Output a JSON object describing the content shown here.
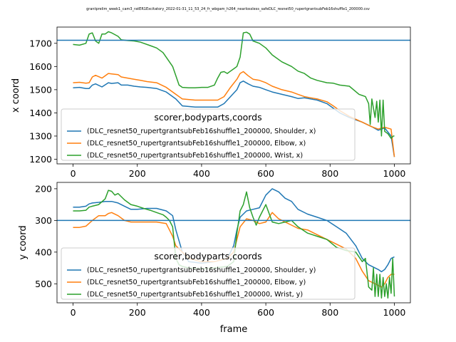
{
  "figure_title": "grantprelim_week1_cam3_ratER1Excitatory_2022-01-31_11_53_24_fr_wbgam_h264_nearlossless_safeDLC_resnet50_rupertgrantsubFeb16shuffle1_200000.csv",
  "colors": {
    "shoulder": "#1f77b4",
    "elbow": "#ff7f0e",
    "wrist": "#2ca02c",
    "hline": "#1f77b4"
  },
  "chart_data": [
    {
      "type": "line",
      "title": "",
      "xlabel": "",
      "ylabel": "x coord",
      "xlim": [
        -50,
        1050
      ],
      "ylim": [
        1180,
        1770
      ],
      "xticks": [
        0,
        200,
        400,
        600,
        800,
        1000
      ],
      "yticks": [
        1200,
        1300,
        1400,
        1500,
        1600,
        1700
      ],
      "invert_y": false,
      "hline": 1713,
      "legend": {
        "title": "scorer,bodyparts,coords",
        "placement": "lower-left",
        "entries": [
          "(DLC_resnet50_rupertgrantsubFeb16shuffle1_200000, Shoulder, x)",
          "(DLC_resnet50_rupertgrantsubFeb16shuffle1_200000, Elbow, x)",
          "(DLC_resnet50_rupertgrantsubFeb16shuffle1_200000, Wrist, x)"
        ]
      },
      "series": [
        {
          "name": "(DLC_resnet50_rupertgrantsubFeb16shuffle1_200000, Shoulder, x)",
          "color": "#1f77b4",
          "x": [
            0,
            20,
            40,
            50,
            60,
            70,
            90,
            110,
            120,
            140,
            150,
            170,
            190,
            210,
            230,
            260,
            290,
            300,
            310,
            320,
            340,
            380,
            420,
            450,
            470,
            490,
            510,
            520,
            530,
            545,
            560,
            580,
            600,
            620,
            650,
            680,
            700,
            720,
            740,
            760,
            790,
            810,
            830,
            860,
            900,
            930,
            950,
            960,
            970,
            990,
            1000
          ],
          "y": [
            1508,
            1510,
            1505,
            1505,
            1520,
            1525,
            1512,
            1530,
            1527,
            1530,
            1520,
            1520,
            1515,
            1512,
            1510,
            1505,
            1490,
            1480,
            1470,
            1460,
            1430,
            1425,
            1425,
            1425,
            1440,
            1470,
            1500,
            1530,
            1537,
            1525,
            1515,
            1510,
            1500,
            1490,
            1480,
            1470,
            1462,
            1465,
            1460,
            1455,
            1440,
            1420,
            1400,
            1380,
            1360,
            1340,
            1325,
            1330,
            1335,
            1300,
            1210
          ]
        },
        {
          "name": "(DLC_resnet50_rupertgrantsubFeb16shuffle1_200000, Elbow, x)",
          "color": "#ff7f0e",
          "x": [
            0,
            20,
            40,
            50,
            60,
            70,
            90,
            110,
            120,
            140,
            150,
            170,
            190,
            210,
            230,
            260,
            290,
            300,
            310,
            320,
            340,
            380,
            420,
            450,
            470,
            490,
            510,
            520,
            530,
            545,
            560,
            580,
            600,
            620,
            650,
            680,
            700,
            720,
            740,
            760,
            790,
            810,
            830,
            860,
            900,
            930,
            950,
            960,
            970,
            990,
            1000
          ],
          "y": [
            1530,
            1532,
            1528,
            1530,
            1555,
            1562,
            1550,
            1570,
            1568,
            1565,
            1555,
            1550,
            1545,
            1540,
            1535,
            1530,
            1510,
            1500,
            1490,
            1480,
            1460,
            1455,
            1455,
            1455,
            1470,
            1510,
            1545,
            1570,
            1578,
            1560,
            1545,
            1540,
            1530,
            1515,
            1500,
            1490,
            1480,
            1470,
            1465,
            1460,
            1448,
            1430,
            1410,
            1385,
            1360,
            1340,
            1330,
            1335,
            1338,
            1330,
            1210
          ]
        },
        {
          "name": "(DLC_resnet50_rupertgrantsubFeb16shuffle1_200000, Wrist, x)",
          "color": "#2ca02c",
          "x": [
            0,
            20,
            40,
            50,
            60,
            70,
            80,
            90,
            100,
            110,
            120,
            140,
            150,
            170,
            190,
            210,
            240,
            260,
            280,
            290,
            300,
            310,
            320,
            330,
            340,
            360,
            380,
            400,
            420,
            440,
            450,
            460,
            470,
            480,
            490,
            500,
            510,
            520,
            530,
            540,
            550,
            560,
            580,
            600,
            620,
            650,
            680,
            700,
            720,
            740,
            760,
            790,
            810,
            830,
            860,
            890,
            910,
            920,
            925,
            930,
            935,
            940,
            945,
            950,
            955,
            960,
            965,
            970,
            980,
            990,
            997,
            1000
          ],
          "y": [
            1695,
            1692,
            1700,
            1740,
            1745,
            1710,
            1700,
            1740,
            1740,
            1750,
            1745,
            1730,
            1715,
            1712,
            1710,
            1705,
            1690,
            1680,
            1660,
            1640,
            1620,
            1600,
            1560,
            1520,
            1510,
            1508,
            1508,
            1510,
            1510,
            1520,
            1550,
            1575,
            1578,
            1570,
            1580,
            1590,
            1600,
            1640,
            1745,
            1748,
            1740,
            1710,
            1700,
            1680,
            1650,
            1620,
            1600,
            1580,
            1570,
            1550,
            1540,
            1530,
            1528,
            1520,
            1515,
            1480,
            1470,
            1440,
            1350,
            1460,
            1420,
            1380,
            1450,
            1360,
            1455,
            1300,
            1455,
            1320,
            1310,
            1290,
            1300,
            1300
          ]
        }
      ]
    },
    {
      "type": "line",
      "title": "",
      "xlabel": "frame",
      "ylabel": "y coord",
      "xlim": [
        -50,
        1050
      ],
      "ylim": [
        180,
        560
      ],
      "xticks": [
        0,
        200,
        400,
        600,
        800,
        1000
      ],
      "yticks": [
        200,
        300,
        400,
        500
      ],
      "invert_y": true,
      "hline": 300,
      "legend": {
        "title": "scorer,bodyparts,coords",
        "placement": "lower-left",
        "entries": [
          "(DLC_resnet50_rupertgrantsubFeb16shuffle1_200000, Shoulder, y)",
          "(DLC_resnet50_rupertgrantsubFeb16shuffle1_200000, Elbow, y)",
          "(DLC_resnet50_rupertgrantsubFeb16shuffle1_200000, Wrist, y)"
        ]
      },
      "series": [
        {
          "name": "(DLC_resnet50_rupertgrantsubFeb16shuffle1_200000, Shoulder, y)",
          "color": "#1f77b4",
          "x": [
            0,
            20,
            40,
            50,
            60,
            80,
            100,
            120,
            140,
            160,
            180,
            200,
            230,
            260,
            290,
            310,
            320,
            340,
            360,
            400,
            440,
            480,
            500,
            510,
            520,
            540,
            560,
            580,
            600,
            620,
            640,
            660,
            680,
            700,
            730,
            760,
            790,
            820,
            850,
            880,
            900,
            920,
            950,
            960,
            970,
            980,
            990,
            1000
          ],
          "y": [
            258,
            258,
            255,
            248,
            245,
            243,
            240,
            240,
            245,
            255,
            265,
            265,
            262,
            262,
            270,
            285,
            330,
            400,
            430,
            435,
            430,
            420,
            380,
            330,
            290,
            270,
            265,
            260,
            220,
            200,
            210,
            230,
            240,
            265,
            280,
            290,
            300,
            320,
            340,
            380,
            420,
            440,
            455,
            462,
            455,
            440,
            420,
            415
          ]
        },
        {
          "name": "(DLC_resnet50_rupertgrantsubFeb16shuffle1_200000, Elbow, y)",
          "color": "#ff7f0e",
          "x": [
            0,
            20,
            40,
            60,
            80,
            100,
            110,
            120,
            140,
            160,
            180,
            200,
            230,
            260,
            290,
            300,
            310,
            320,
            340,
            360,
            400,
            440,
            480,
            500,
            510,
            520,
            540,
            560,
            580,
            600,
            620,
            640,
            660,
            680,
            700,
            730,
            760,
            790,
            820,
            850,
            880,
            900,
            920,
            940,
            950,
            960,
            970,
            980,
            990,
            1000
          ],
          "y": [
            322,
            322,
            318,
            300,
            285,
            285,
            278,
            275,
            285,
            300,
            305,
            305,
            305,
            305,
            310,
            330,
            350,
            380,
            400,
            420,
            430,
            430,
            420,
            400,
            360,
            320,
            295,
            300,
            310,
            305,
            275,
            295,
            305,
            315,
            325,
            330,
            345,
            360,
            375,
            390,
            420,
            460,
            490,
            500,
            505,
            510,
            500,
            480,
            470,
            470
          ]
        },
        {
          "name": "(DLC_resnet50_rupertgrantsubFeb16shuffle1_200000, Wrist, y)",
          "color": "#2ca02c",
          "x": [
            0,
            20,
            40,
            50,
            60,
            80,
            100,
            110,
            120,
            130,
            140,
            160,
            180,
            200,
            220,
            240,
            260,
            280,
            290,
            300,
            310,
            320,
            330,
            340,
            360,
            400,
            440,
            480,
            500,
            510,
            520,
            530,
            540,
            550,
            560,
            570,
            580,
            590,
            600,
            620,
            640,
            660,
            680,
            700,
            730,
            760,
            790,
            820,
            850,
            880,
            900,
            910,
            920,
            930,
            935,
            940,
            945,
            950,
            955,
            960,
            965,
            970,
            975,
            980,
            985,
            990,
            995,
            1000
          ],
          "y": [
            270,
            270,
            268,
            258,
            255,
            250,
            232,
            205,
            208,
            220,
            215,
            235,
            250,
            255,
            262,
            268,
            275,
            282,
            290,
            300,
            320,
            420,
            440,
            445,
            450,
            452,
            450,
            445,
            430,
            340,
            270,
            250,
            210,
            260,
            290,
            315,
            290,
            270,
            250,
            305,
            310,
            305,
            300,
            320,
            340,
            350,
            360,
            385,
            395,
            400,
            430,
            420,
            510,
            520,
            450,
            540,
            470,
            540,
            470,
            545,
            480,
            540,
            500,
            545,
            480,
            530,
            420,
            540
          ]
        }
      ]
    }
  ]
}
